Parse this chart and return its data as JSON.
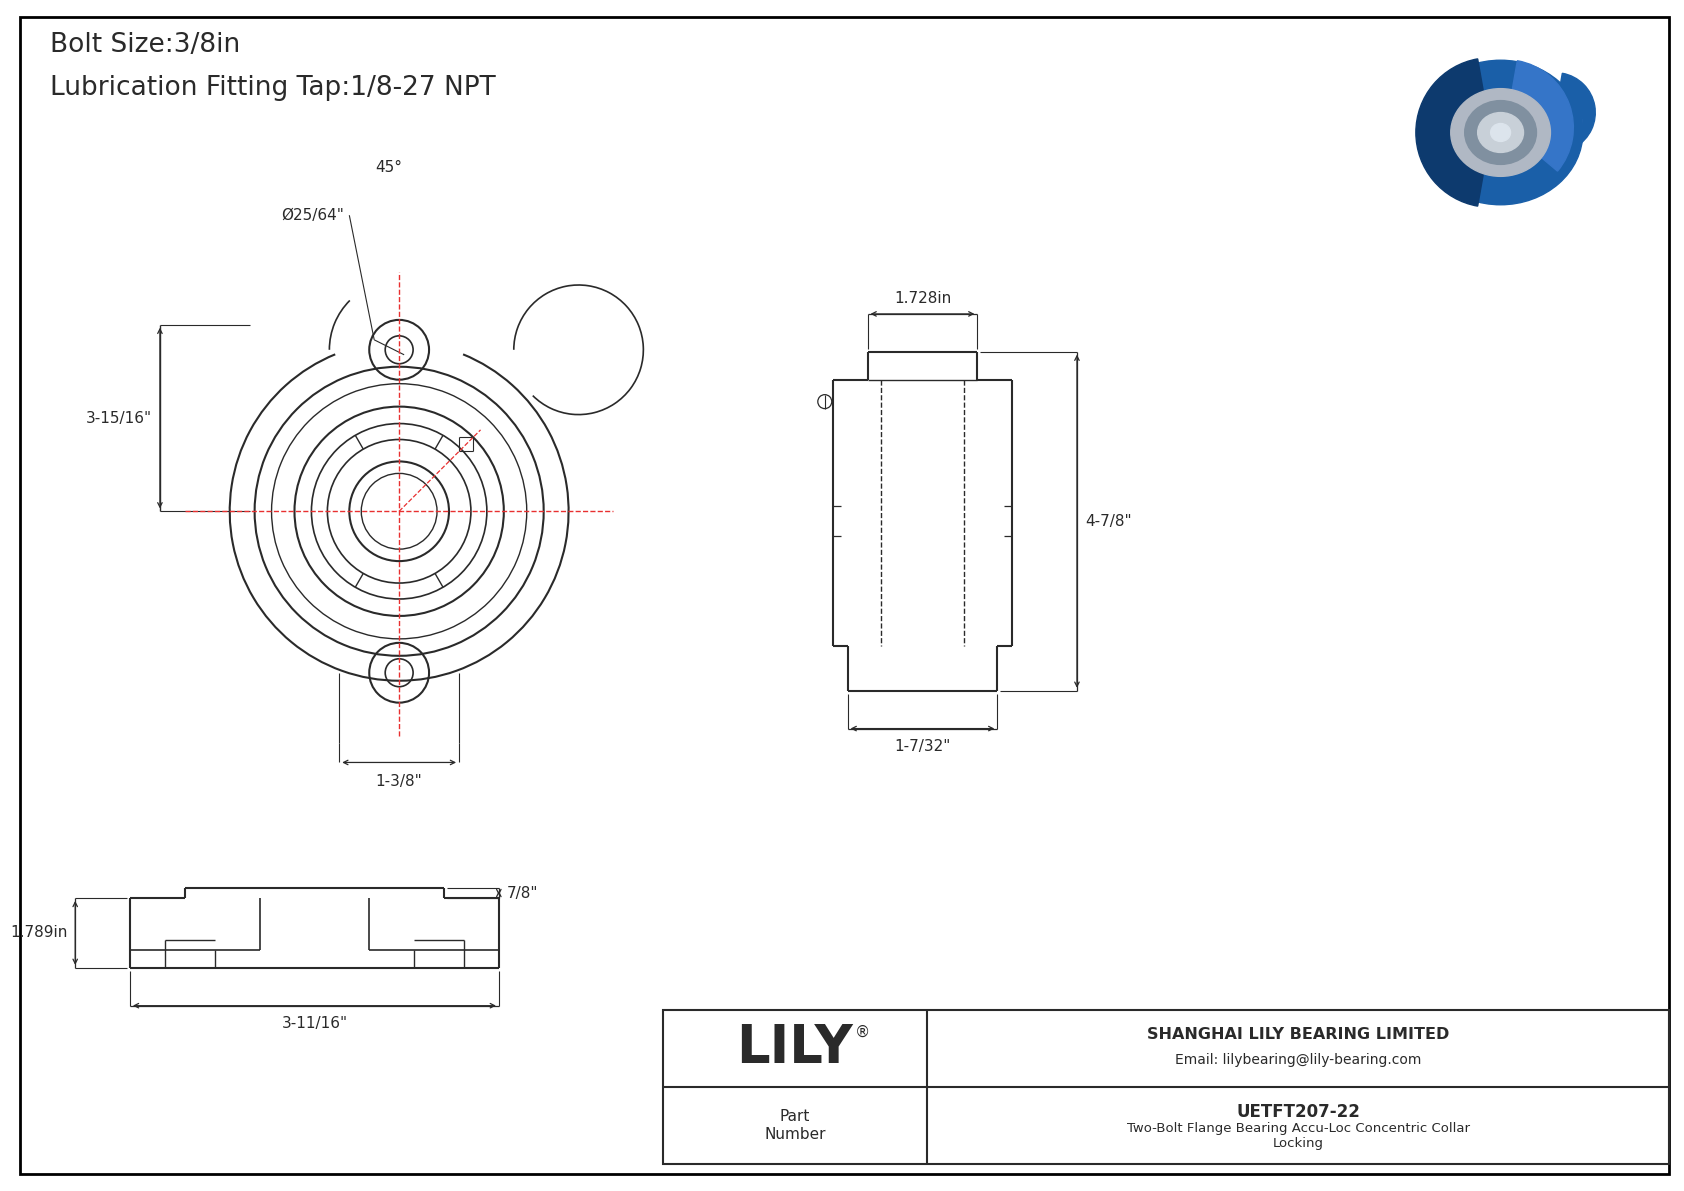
{
  "bg_color": "#ffffff",
  "border_color": "#000000",
  "line_color": "#2a2a2a",
  "red_color": "#e83030",
  "blue_color": "#1a5fa8",
  "blue_light": "#4a7fc0",
  "blue_mid": "#2a6ab8",
  "gray_mid": "#888888",
  "title_line1": "Bolt Size:3/8in",
  "title_line2": "Lubrication Fitting Tap:1/8-27 NPT",
  "dim_phi": "Ø25/64\"",
  "dim_45": "45°",
  "dim_3_15_16": "3-15/16\"",
  "dim_1_3_8": "1-3/8\"",
  "dim_1_728": "1.728in",
  "dim_4_7_8": "4-7/8\"",
  "dim_1_7_32": "1-7/32\"",
  "dim_7_8": "7/8\"",
  "dim_1_789": "1.789in",
  "dim_3_11_16": "3-11/16\"",
  "company": "SHANGHAI LILY BEARING LIMITED",
  "email": "Email: lilybearing@lily-bearing.com",
  "part_label": "Part\nNumber",
  "part_number": "UETFT207-22",
  "part_desc": "Two-Bolt Flange Bearing Accu-Loc Concentric Collar\nLocking",
  "lily_logo": "LILY"
}
